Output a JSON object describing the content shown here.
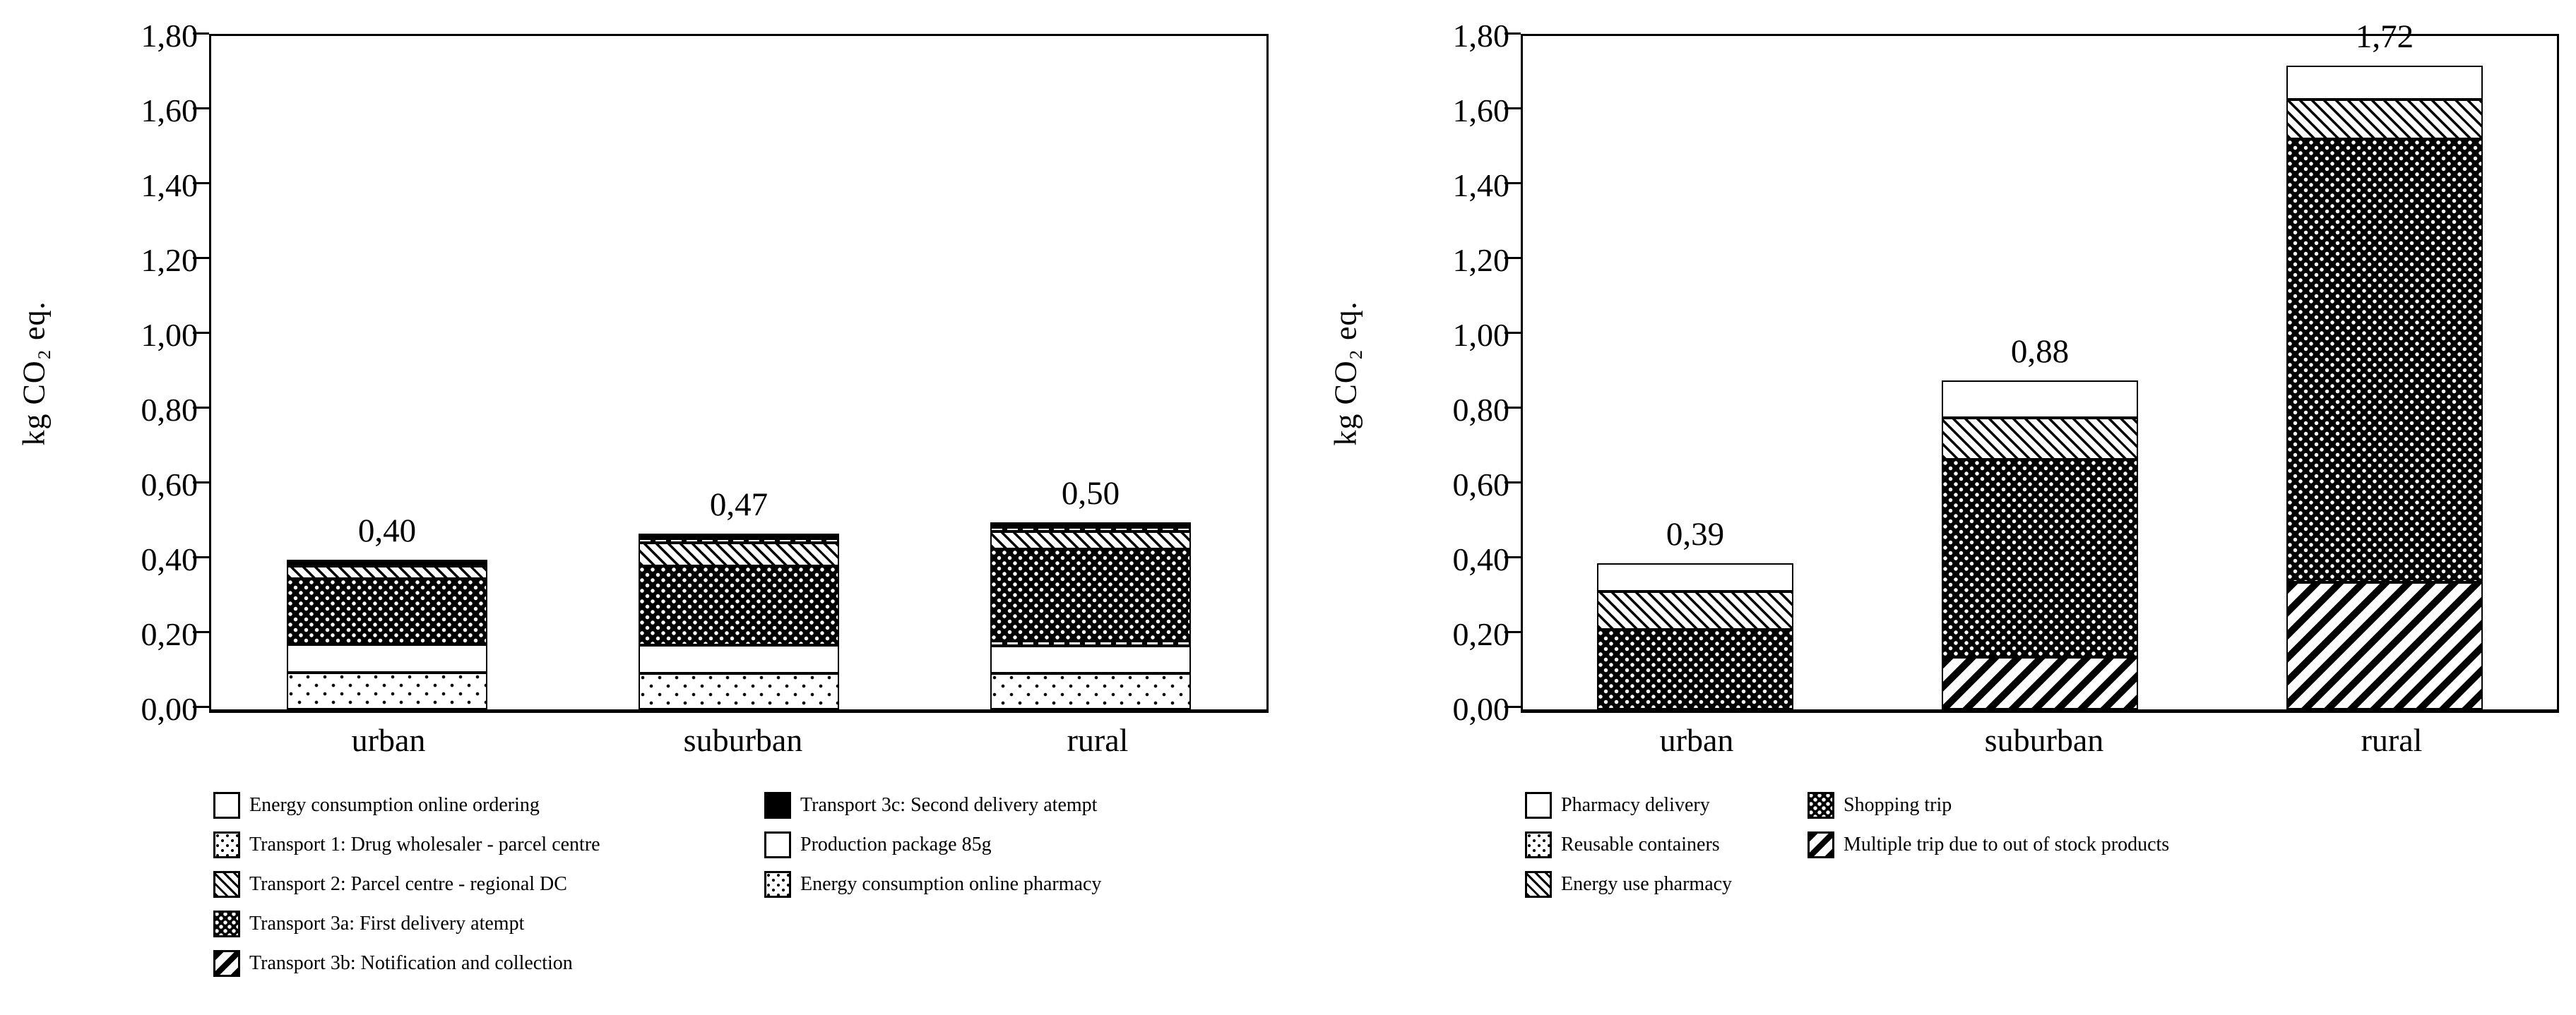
{
  "figure": {
    "background": "#ffffff",
    "ink": "#000000",
    "y_axis": {
      "label": "kg CO₂ eq.",
      "ticks": [
        "0,00",
        "0,20",
        "0,40",
        "0,60",
        "0,80",
        "1,00",
        "1,20",
        "1,40",
        "1,60",
        "1,80"
      ],
      "tick_values": [
        0,
        0.2,
        0.4,
        0.6,
        0.8,
        1.0,
        1.2,
        1.4,
        1.6,
        1.8
      ],
      "max": 1.8
    },
    "panels": [
      {
        "position": "left",
        "categories": [
          "urban",
          "suburban",
          "rural"
        ],
        "bars": [
          {
            "category": "urban",
            "total_label": "0,40",
            "total": 0.4,
            "segments": [
              {
                "series": "Energy consumption online pharmacy",
                "pattern": "dots-light",
                "value": 0.098
              },
              {
                "series": "Production package 85g",
                "pattern": "white",
                "value": 0.075
              },
              {
                "series": "Transport 3a: First delivery atempt",
                "pattern": "dots-dark",
                "value": 0.176
              },
              {
                "series": "Transport 2: Parcel centre - regional DC",
                "pattern": "hatch-thin",
                "value": 0.034
              },
              {
                "series": "Transport 3c: Second delivery atempt",
                "pattern": "black",
                "value": 0.017
              }
            ]
          },
          {
            "category": "suburban",
            "total_label": "0,47",
            "total": 0.47,
            "segments": [
              {
                "series": "Energy consumption online pharmacy",
                "pattern": "dots-light",
                "value": 0.096
              },
              {
                "series": "Production package 85g",
                "pattern": "white",
                "value": 0.076
              },
              {
                "series": "Transport 3a: First delivery atempt",
                "pattern": "dots-dark",
                "value": 0.211
              },
              {
                "series": "Transport 2: Parcel centre - regional DC",
                "pattern": "hatch-thin",
                "value": 0.062
              },
              {
                "series": "Transport 1: Drug wholesaler - parcel centre",
                "pattern": "dash",
                "value": 0.012
              },
              {
                "series": "Transport 3c: Second delivery atempt",
                "pattern": "black",
                "value": 0.013
              }
            ]
          },
          {
            "category": "rural",
            "total_label": "0,50",
            "total": 0.5,
            "segments": [
              {
                "series": "Energy consumption online pharmacy",
                "pattern": "dots-light",
                "value": 0.096
              },
              {
                "series": "Production package 85g",
                "pattern": "white",
                "value": 0.074
              },
              {
                "series": "Transport 3b: Notification and collection",
                "pattern": "dash",
                "value": 0.014
              },
              {
                "series": "Transport 3a: First delivery atempt",
                "pattern": "dots-dark",
                "value": 0.245
              },
              {
                "series": "Transport 2: Parcel centre - regional DC",
                "pattern": "hatch-thin",
                "value": 0.046
              },
              {
                "series": "Transport 1: Drug wholesaler - parcel centre",
                "pattern": "dash",
                "value": 0.012
              },
              {
                "series": "Transport 3c: Second delivery atempt",
                "pattern": "black",
                "value": 0.013
              }
            ]
          }
        ],
        "legend": {
          "columns": [
            [
              {
                "pattern": "white",
                "label": "Energy consumption online ordering"
              },
              {
                "pattern": "dots-light",
                "label": "Transport 1: Drug wholesaler - parcel centre"
              },
              {
                "pattern": "hatch-thin",
                "label": "Transport 2: Parcel centre - regional DC"
              },
              {
                "pattern": "dots-dark",
                "label": "Transport 3a: First delivery atempt"
              },
              {
                "pattern": "hatch-thick",
                "label": "Transport 3b: Notification and collection"
              }
            ],
            [
              {
                "pattern": "black",
                "label": "Transport 3c: Second delivery atempt"
              },
              {
                "pattern": "white",
                "label": "Production package 85g"
              },
              {
                "pattern": "dots-light",
                "label": "Energy consumption online pharmacy"
              }
            ]
          ]
        }
      },
      {
        "position": "right",
        "categories": [
          "urban",
          "suburban",
          "rural"
        ],
        "bars": [
          {
            "category": "urban",
            "total_label": "0,39",
            "total": 0.39,
            "segments": [
              {
                "series": "Shopping trip",
                "pattern": "dots-dark",
                "value": 0.213
              },
              {
                "series": "Energy use pharmacy",
                "pattern": "hatch-thin",
                "value": 0.102
              },
              {
                "series": "Pharmacy delivery",
                "pattern": "white",
                "value": 0.075
              }
            ]
          },
          {
            "category": "suburban",
            "total_label": "0,88",
            "total": 0.88,
            "segments": [
              {
                "series": "Multiple trip due to out of stock products",
                "pattern": "hatch-thick",
                "value": 0.14
              },
              {
                "series": "Shopping trip",
                "pattern": "dots-dark",
                "value": 0.528
              },
              {
                "series": "Energy use pharmacy",
                "pattern": "hatch-thin",
                "value": 0.112
              },
              {
                "series": "Pharmacy delivery",
                "pattern": "white",
                "value": 0.1
              }
            ]
          },
          {
            "category": "rural",
            "total_label": "1,72",
            "total": 1.72,
            "segments": [
              {
                "series": "Multiple trip due to out of stock products",
                "pattern": "hatch-thick",
                "value": 0.34
              },
              {
                "series": "Shopping trip",
                "pattern": "dots-dark",
                "value": 1.185
              },
              {
                "series": "Energy use pharmacy",
                "pattern": "hatch-thin",
                "value": 0.105
              },
              {
                "series": "Pharmacy delivery",
                "pattern": "white",
                "value": 0.09
              }
            ]
          }
        ],
        "legend": {
          "columns": [
            [
              {
                "pattern": "white",
                "label": "Pharmacy delivery"
              },
              {
                "pattern": "dots-light",
                "label": "Reusable containers"
              },
              {
                "pattern": "hatch-thin",
                "label": "Energy use pharmacy"
              }
            ],
            [
              {
                "pattern": "dots-dark",
                "label": "Shopping trip"
              },
              {
                "pattern": "hatch-thick",
                "label": "Multiple trip due to out of stock products"
              }
            ]
          ]
        }
      }
    ]
  },
  "chart_data": [
    {
      "type": "bar",
      "subtype": "stacked",
      "position": "left",
      "title": "",
      "xlabel": "",
      "ylabel": "kg CO₂ eq.",
      "ylim": [
        0,
        1.8
      ],
      "ytick_step": 0.2,
      "decimal_style": "comma",
      "grid": false,
      "legend_position": "below",
      "categories": [
        "urban",
        "suburban",
        "rural"
      ],
      "totals": [
        0.4,
        0.47,
        0.5
      ],
      "total_labels": [
        "0,40",
        "0,47",
        "0,50"
      ],
      "series": [
        {
          "name": "Energy consumption online ordering",
          "values": [
            0.0,
            0.0,
            0.0
          ]
        },
        {
          "name": "Transport 1: Drug wholesaler - parcel centre",
          "values": [
            0.0,
            0.012,
            0.012
          ]
        },
        {
          "name": "Transport 2: Parcel centre - regional DC",
          "values": [
            0.034,
            0.062,
            0.046
          ]
        },
        {
          "name": "Transport 3a: First delivery atempt",
          "values": [
            0.176,
            0.211,
            0.245
          ]
        },
        {
          "name": "Transport 3b: Notification and collection",
          "values": [
            0.0,
            0.0,
            0.014
          ]
        },
        {
          "name": "Transport 3c: Second delivery atempt",
          "values": [
            0.017,
            0.013,
            0.013
          ]
        },
        {
          "name": "Production package 85g",
          "values": [
            0.075,
            0.076,
            0.074
          ]
        },
        {
          "name": "Energy consumption online pharmacy",
          "values": [
            0.098,
            0.096,
            0.096
          ]
        }
      ]
    },
    {
      "type": "bar",
      "subtype": "stacked",
      "position": "right",
      "title": "",
      "xlabel": "",
      "ylabel": "kg CO₂ eq.",
      "ylim": [
        0,
        1.8
      ],
      "ytick_step": 0.2,
      "decimal_style": "comma",
      "grid": false,
      "legend_position": "below",
      "categories": [
        "urban",
        "suburban",
        "rural"
      ],
      "totals": [
        0.39,
        0.88,
        1.72
      ],
      "total_labels": [
        "0,39",
        "0,88",
        "1,72"
      ],
      "series": [
        {
          "name": "Pharmacy delivery",
          "values": [
            0.075,
            0.1,
            0.09
          ]
        },
        {
          "name": "Reusable containers",
          "values": [
            0.0,
            0.0,
            0.0
          ]
        },
        {
          "name": "Energy use pharmacy",
          "values": [
            0.102,
            0.112,
            0.105
          ]
        },
        {
          "name": "Shopping trip",
          "values": [
            0.213,
            0.528,
            1.185
          ]
        },
        {
          "name": "Multiple trip due to out of stock products",
          "values": [
            0.0,
            0.14,
            0.34
          ]
        }
      ]
    }
  ]
}
